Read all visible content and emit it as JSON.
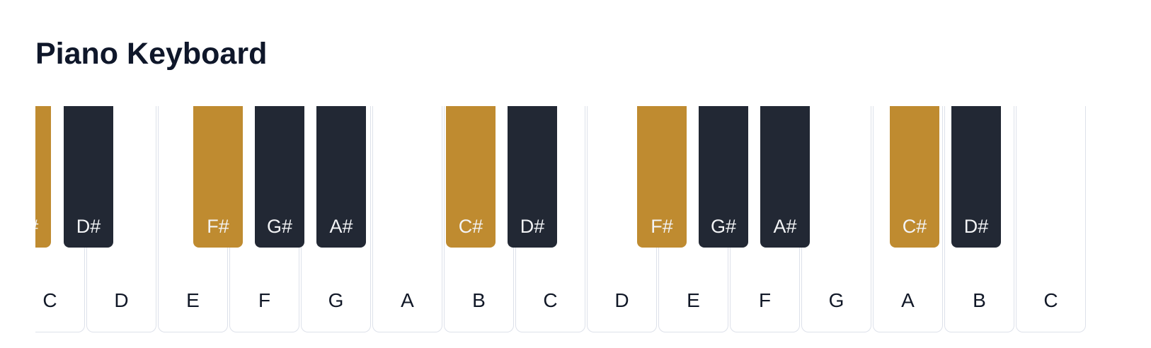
{
  "page": {
    "title": "Piano Keyboard"
  },
  "colors": {
    "highlight": "#bf8b30",
    "black_key": "#222834",
    "white_key": "#ffffff",
    "white_key_border": "#dde1ea"
  },
  "keyboard": {
    "white_keys": [
      {
        "label": "C"
      },
      {
        "label": "D"
      },
      {
        "label": "E"
      },
      {
        "label": "F"
      },
      {
        "label": "G"
      },
      {
        "label": "A"
      },
      {
        "label": "B"
      },
      {
        "label": "C"
      },
      {
        "label": "D"
      },
      {
        "label": "E"
      },
      {
        "label": "F"
      },
      {
        "label": "G"
      },
      {
        "label": "A"
      },
      {
        "label": "B"
      },
      {
        "label": "C"
      }
    ],
    "black_keys": [
      {
        "label": "C#",
        "highlighted": true
      },
      {
        "label": "D#",
        "highlighted": false
      },
      {
        "label": "F#",
        "highlighted": true
      },
      {
        "label": "G#",
        "highlighted": false
      },
      {
        "label": "A#",
        "highlighted": false
      },
      {
        "label": "C#",
        "highlighted": true
      },
      {
        "label": "D#",
        "highlighted": false
      },
      {
        "label": "F#",
        "highlighted": true
      },
      {
        "label": "G#",
        "highlighted": false
      },
      {
        "label": "A#",
        "highlighted": false
      },
      {
        "label": "C#",
        "highlighted": true
      },
      {
        "label": "D#",
        "highlighted": false
      }
    ]
  }
}
